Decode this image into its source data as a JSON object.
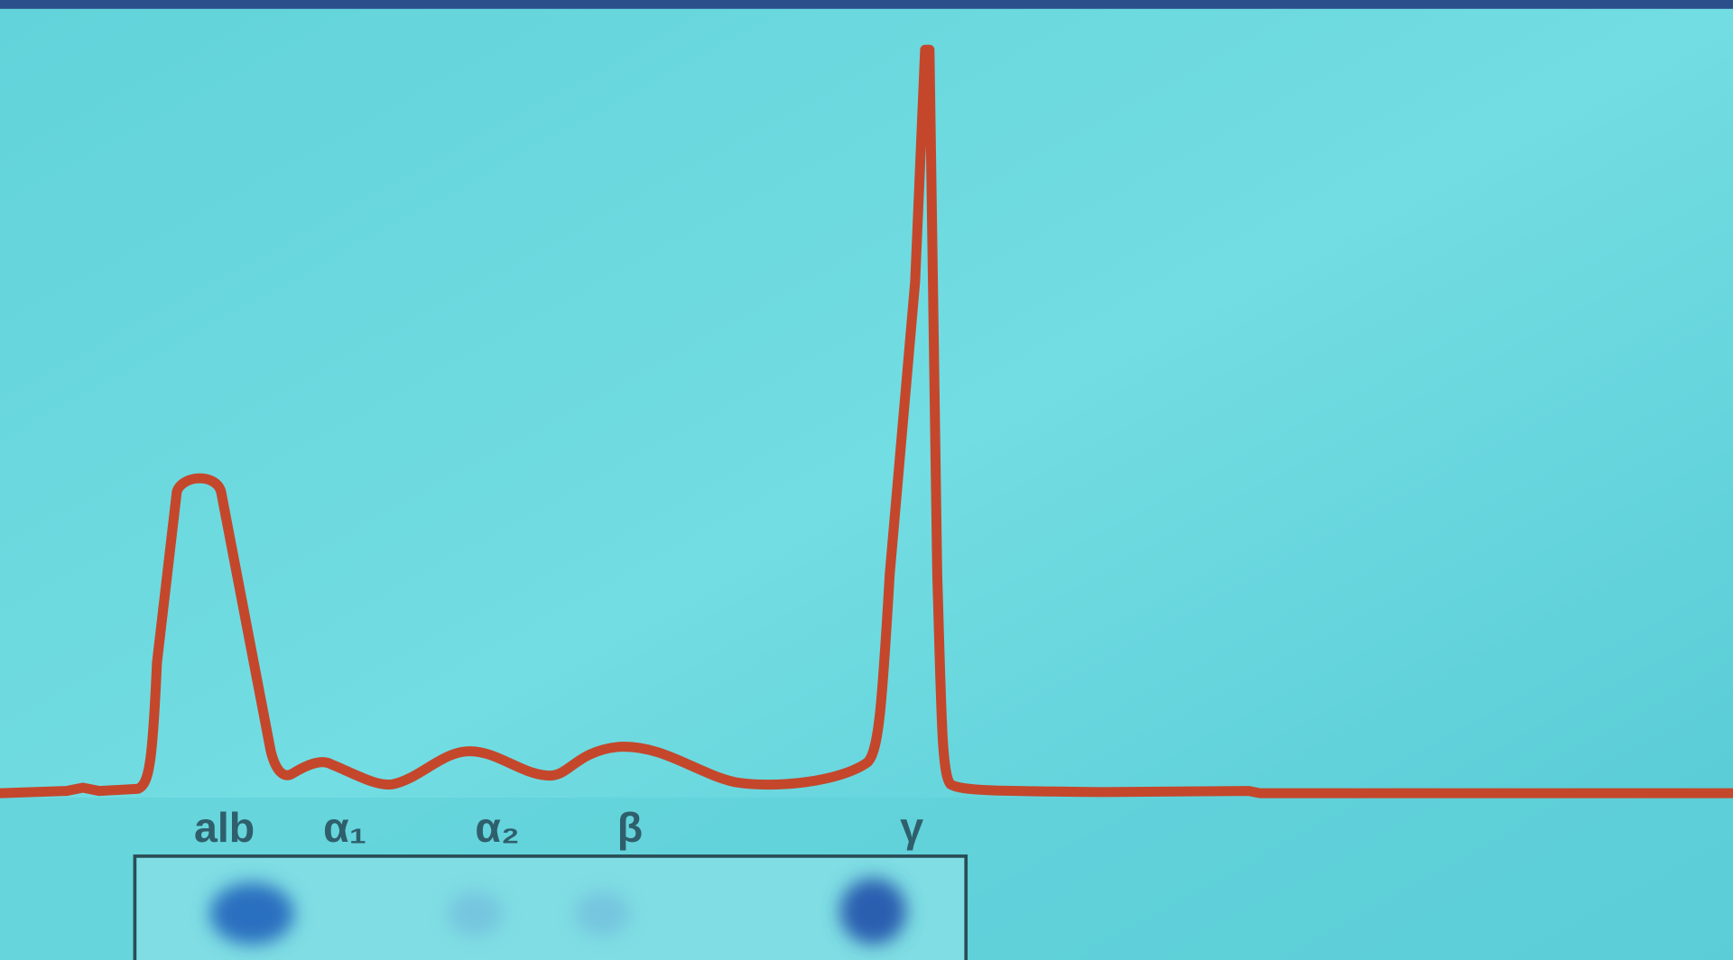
{
  "labels": [
    "alb",
    "α₁",
    "α₂",
    "β",
    "γ"
  ]
}
